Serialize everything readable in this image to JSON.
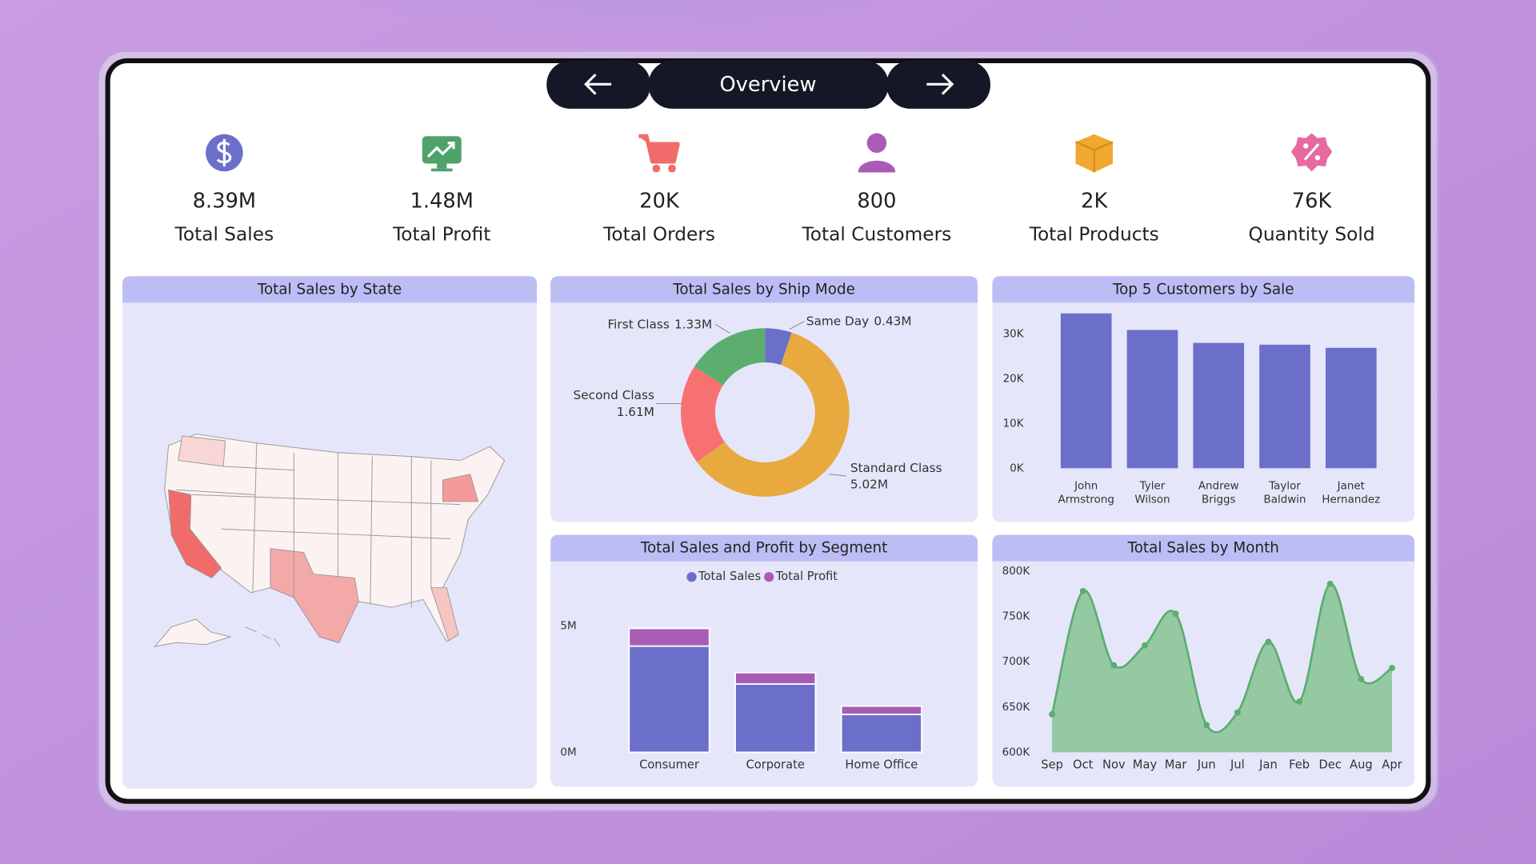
{
  "header": {
    "title": "Overview"
  },
  "kpis": [
    {
      "value": "8.39M",
      "label": "Total Sales"
    },
    {
      "value": "1.48M",
      "label": "Total Profit"
    },
    {
      "value": "20K",
      "label": "Total Orders"
    },
    {
      "value": "800",
      "label": "Total Customers"
    },
    {
      "value": "2K",
      "label": "Total Products"
    },
    {
      "value": "76K",
      "label": "Quantity Sold"
    }
  ],
  "chart_data": [
    {
      "type": "map",
      "title": "Total Sales by State"
    },
    {
      "type": "donut",
      "title": "Total Sales by Ship Mode",
      "categories": [
        "Same Day",
        "Standard Class",
        "Second Class",
        "First Class"
      ],
      "values": [
        0.43,
        5.02,
        1.61,
        1.33
      ],
      "value_labels": [
        "0.43M",
        "5.02M",
        "1.61M",
        "1.33M"
      ],
      "colors": [
        "#6B6FC9",
        "#E8A93F",
        "#F87171",
        "#5BAE6E"
      ]
    },
    {
      "type": "bar",
      "title": "Top 5 Customers by Sale",
      "categories": [
        "John Armstrong",
        "Tyler Wilson",
        "Andrew Briggs",
        "Taylor Baldwin",
        "Janet Hernandez"
      ],
      "values": [
        34600,
        30900,
        28000,
        27600,
        26900
      ],
      "color": "#6B6FC9",
      "ylim": [
        0,
        36000
      ],
      "yticks": [
        {
          "value": 0,
          "label": "0K"
        },
        {
          "value": 10000,
          "label": "10K"
        },
        {
          "value": 20000,
          "label": "20K"
        },
        {
          "value": 30000,
          "label": "30K"
        }
      ]
    },
    {
      "type": "stacked_bar",
      "title": "Total Sales and Profit by Segment",
      "categories": [
        "Consumer",
        "Corporate",
        "Home Office"
      ],
      "series": [
        {
          "name": "Total Sales",
          "color": "#6B6FC9",
          "values": [
            4.2,
            2.7,
            1.5
          ]
        },
        {
          "name": "Total Profit",
          "color": "#A85CB5",
          "values": [
            0.7,
            0.45,
            0.33
          ]
        }
      ],
      "ylim": [
        0,
        5.5
      ],
      "yticks": [
        {
          "value": 0,
          "label": "0M"
        },
        {
          "value": 5,
          "label": "5M"
        }
      ]
    },
    {
      "type": "area",
      "title": "Total Sales by Month",
      "categories": [
        "Sep",
        "Oct",
        "Nov",
        "May",
        "Mar",
        "Jun",
        "Jul",
        "Jan",
        "Feb",
        "Dec",
        "Aug",
        "Apr"
      ],
      "values": [
        642000,
        778000,
        696000,
        718000,
        753000,
        630000,
        644000,
        722000,
        656000,
        786000,
        681000,
        693000
      ],
      "color": "#5BAE6E",
      "ylim": [
        600000,
        800000
      ],
      "yticks": [
        {
          "value": 600000,
          "label": "600K"
        },
        {
          "value": 650000,
          "label": "650K"
        },
        {
          "value": 700000,
          "label": "700K"
        },
        {
          "value": 750000,
          "label": "750K"
        },
        {
          "value": 800000,
          "label": "800K"
        }
      ]
    }
  ]
}
